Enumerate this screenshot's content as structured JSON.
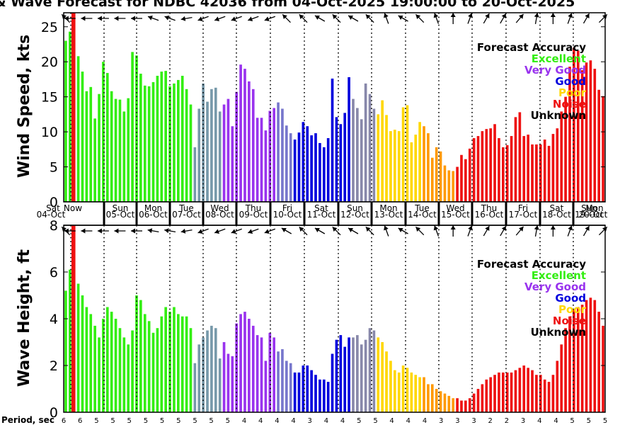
{
  "chart_data": {
    "type": "bar",
    "title": "& Wave Forecast for NDBC 42036 from 04-Oct-2025 19:00:00 to 20-Oct-2025",
    "day_labels": [
      {
        "dow": "Sat",
        "date": "04-Oct"
      },
      {
        "dow": "Sun",
        "date": "05-Oct"
      },
      {
        "dow": "Mon",
        "date": "06-Oct"
      },
      {
        "dow": "Tue",
        "date": "07-Oct"
      },
      {
        "dow": "Wed",
        "date": "08-Oct"
      },
      {
        "dow": "Thu",
        "date": "09-Oct"
      },
      {
        "dow": "Fri",
        "date": "10-Oct"
      },
      {
        "dow": "Sat",
        "date": "11-Oct"
      },
      {
        "dow": "Sun",
        "date": "12-Oct"
      },
      {
        "dow": "Mon",
        "date": "13-Oct"
      },
      {
        "dow": "Tue",
        "date": "14-Oct"
      },
      {
        "dow": "Wed",
        "date": "15-Oct"
      },
      {
        "dow": "Thu",
        "date": "16-Oct"
      },
      {
        "dow": "Fri",
        "date": "17-Oct"
      },
      {
        "dow": "Sat",
        "date": "18-Oct"
      },
      {
        "dow": "Sun",
        "date": "19-Oct"
      },
      {
        "dow": "Mon",
        "date": "20-Oct"
      }
    ],
    "now_label": "Now",
    "legend": {
      "title": "Forecast Accuracy",
      "items": [
        {
          "label": "Excellent",
          "color": "#33ee11"
        },
        {
          "label": "Very Good",
          "color": "#9933ee"
        },
        {
          "label": "Good",
          "color": "#0000dd"
        },
        {
          "label": "Poor",
          "color": "#ffd700"
        },
        {
          "label": "Noise",
          "color": "#ee1111"
        },
        {
          "label": "Unknown",
          "color": "#000000"
        }
      ]
    },
    "wind": {
      "ylabel": "Wind Speed, kts",
      "ylim": [
        0,
        27
      ],
      "yticks": [
        0,
        5,
        10,
        15,
        20,
        25
      ],
      "values": [
        23,
        24.3,
        27,
        20.8,
        18.6,
        15.8,
        16.4,
        11.9,
        15.4,
        20,
        18.4,
        15.8,
        14.7,
        14.6,
        12.9,
        14.8,
        21.4,
        20.9,
        18.3,
        16.6,
        16.5,
        17.1,
        18,
        18.6,
        18.7,
        16.5,
        16.9,
        17.4,
        18,
        16.1,
        13.9,
        7.8,
        13.3,
        16.9,
        14.3,
        16.1,
        16.3,
        12.9,
        13.9,
        14.7,
        10.8,
        15.7,
        19.6,
        19,
        17.2,
        16.1,
        12,
        12,
        10.2,
        13,
        13.4,
        14.2,
        13.3,
        10.9,
        9.8,
        8.9,
        9.9,
        11.4,
        10.8,
        9.5,
        9.8,
        8.4,
        7.8,
        9.1,
        17.6,
        12.1,
        11.1,
        12.7,
        17.8,
        14.7,
        13.4,
        11.8,
        16.9,
        15.4,
        13.3,
        12.5,
        14.5,
        12.4,
        10.1,
        10.3,
        10.1,
        13.5,
        13.8,
        8.5,
        9.6,
        11.4,
        10.8,
        9.8,
        6.3,
        7.8,
        7.2,
        5.2,
        4.5,
        4.4,
        5,
        6.7,
        6.1,
        7.6,
        9.1,
        9.4,
        10.1,
        10.4,
        10.5,
        11.1,
        9.1,
        7.8,
        8.1,
        9.4,
        12.1,
        12.8,
        9.4,
        9.6,
        8.2,
        8.2,
        8.2,
        8.9,
        8,
        9.7,
        10.5,
        12.9,
        15,
        19.3,
        22,
        21.6,
        18.8,
        19.9,
        20.2,
        19,
        16,
        15.1
      ],
      "arrow_deg": [
        45,
        90,
        90,
        90,
        90,
        90,
        110,
        110,
        110,
        90,
        90,
        90,
        90,
        90,
        90,
        90,
        90,
        90,
        70,
        70,
        70,
        70,
        70,
        70,
        70,
        70,
        70,
        70,
        90,
        100,
        100,
        110,
        110,
        110,
        110,
        110,
        110,
        110,
        110,
        110,
        110,
        110,
        90,
        110,
        110,
        110,
        110,
        110,
        110,
        110,
        110,
        110,
        110,
        45,
        60,
        60,
        60,
        45,
        45,
        45,
        45,
        60,
        60,
        60,
        60,
        45,
        45,
        60,
        60,
        60,
        45,
        45,
        45,
        45,
        45,
        30,
        30,
        20,
        40,
        60,
        60,
        60,
        45,
        45,
        45,
        45,
        45,
        45,
        45,
        20,
        20,
        20,
        0,
        0,
        0,
        -10,
        -10,
        -20,
        -20,
        -20,
        -30,
        -30,
        -30,
        -30,
        -30,
        -30,
        -30,
        -40,
        -40,
        -40,
        -30,
        -30,
        -20,
        -10,
        0,
        0,
        0,
        0,
        0,
        -10,
        -20,
        -20,
        -20,
        -30,
        -30,
        -30,
        -40,
        -40,
        -45,
        -45,
        -45
      ]
    },
    "wave": {
      "ylabel": "Wave Height, ft",
      "ylim": [
        0,
        8
      ],
      "yticks": [
        0,
        2,
        4,
        6,
        8
      ],
      "values": [
        5.2,
        6.1,
        8,
        5.5,
        5,
        4.5,
        4.2,
        3.7,
        3.2,
        4,
        4.5,
        4.3,
        4,
        3.6,
        3.2,
        2.9,
        3.5,
        5,
        4.8,
        4.2,
        3.9,
        3.4,
        3.6,
        4.1,
        4.5,
        4.3,
        4.5,
        4.2,
        4.1,
        4.1,
        3.6,
        2.1,
        2.9,
        3.2,
        3.5,
        3.7,
        3.6,
        2.3,
        3,
        2.5,
        2.4,
        3.8,
        4.2,
        4.3,
        4,
        3.7,
        3.3,
        3.2,
        2.2,
        3.4,
        3.2,
        2.6,
        2.7,
        2.2,
        2.1,
        1.7,
        1.7,
        2,
        2,
        1.8,
        1.6,
        1.4,
        1.4,
        1.3,
        2.5,
        3.1,
        3.3,
        2.8,
        3.2,
        3.2,
        3.3,
        2.9,
        3.1,
        3.6,
        3.5,
        3.2,
        3,
        2.6,
        2.2,
        1.8,
        1.7,
        2,
        1.9,
        1.7,
        1.6,
        1.5,
        1.5,
        1.2,
        1.2,
        1,
        0.9,
        0.8,
        0.7,
        0.6,
        0.6,
        0.5,
        0.5,
        0.6,
        0.8,
        1,
        1.2,
        1.4,
        1.5,
        1.6,
        1.7,
        1.7,
        1.7,
        1.7,
        1.8,
        1.9,
        2,
        1.9,
        1.8,
        1.6,
        1.6,
        1.4,
        1.3,
        1.6,
        2.2,
        2.9,
        3.6,
        4.1,
        4.4,
        4.5,
        4.6,
        4.8,
        4.9,
        4.8,
        4.3,
        3.7
      ],
      "arrow_deg": [
        45,
        90,
        90,
        90,
        90,
        90,
        100,
        100,
        100,
        90,
        90,
        90,
        90,
        90,
        90,
        90,
        90,
        90,
        80,
        80,
        80,
        80,
        80,
        80,
        80,
        80,
        80,
        80,
        90,
        100,
        100,
        110,
        110,
        110,
        110,
        110,
        110,
        110,
        110,
        110,
        110,
        110,
        100,
        110,
        110,
        110,
        110,
        110,
        110,
        110,
        110,
        110,
        110,
        60,
        60,
        60,
        60,
        45,
        45,
        45,
        45,
        60,
        60,
        60,
        60,
        45,
        45,
        60,
        60,
        60,
        45,
        45,
        45,
        45,
        45,
        30,
        30,
        20,
        40,
        60,
        60,
        60,
        45,
        45,
        45,
        45,
        45,
        45,
        45,
        20,
        20,
        20,
        0,
        0,
        0,
        -10,
        -10,
        -20,
        -20,
        -20,
        -30,
        -30,
        -30,
        -30,
        -30,
        -30,
        -30,
        -40,
        -40,
        -40,
        -30,
        -30,
        -20,
        -10,
        0,
        0,
        0,
        0,
        0,
        -10,
        -20,
        -20,
        -20,
        -30,
        -30,
        -30,
        -40,
        -40,
        -45,
        -45,
        -45
      ]
    },
    "period": {
      "label": "Period, sec",
      "values": [
        "6",
        "6",
        "5",
        "5",
        "5",
        "5",
        "5",
        "5",
        "5",
        "5",
        "5",
        "4",
        "4",
        "4",
        "4",
        "3",
        "4",
        "4",
        "5",
        "5",
        "4",
        "4",
        "4",
        "3",
        "3",
        "3",
        "2",
        "2",
        "3",
        "4",
        "4",
        "5",
        "5",
        "5"
      ]
    }
  }
}
